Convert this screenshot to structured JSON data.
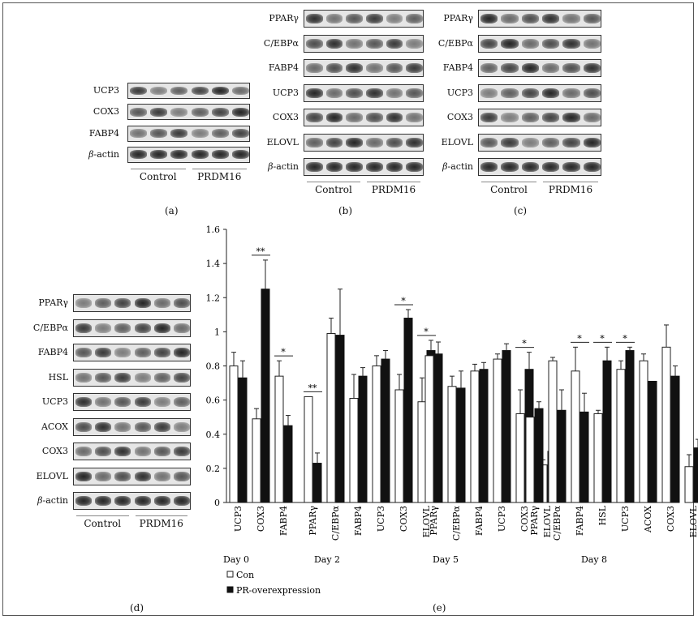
{
  "panels": {
    "a": {
      "letter": "(a)",
      "rows": [
        "UCP3",
        "COX3",
        "FABP4"
      ],
      "actin": "actin",
      "groups": [
        "Control",
        "PRDM16"
      ]
    },
    "b": {
      "letter": "(b)",
      "rows": [
        "PPARγ",
        "C/EBPα",
        "FABP4",
        "UCP3",
        "COX3",
        "ELOVL"
      ],
      "actin": "actin",
      "groups": [
        "Control",
        "PRDM16"
      ]
    },
    "c": {
      "letter": "(c)",
      "rows": [
        "PPARγ",
        "C/EBPα",
        "FABP4",
        "UCP3",
        "COX3",
        "ELOVL"
      ],
      "actin": "actin",
      "groups": [
        "Control",
        "PRDM16"
      ]
    },
    "d": {
      "letter": "(d)",
      "rows": [
        "PPARγ",
        "C/EBPα",
        "FABP4",
        "HSL",
        "UCP3",
        "ACOX",
        "COX3",
        "ELOVL"
      ],
      "actin": "actin",
      "groups": [
        "Control",
        "PRDM16"
      ]
    },
    "e": {
      "letter": "(e)"
    }
  },
  "beta_symbol": "β-",
  "chart_data": {
    "type": "bar",
    "ylim": [
      0,
      1.6
    ],
    "yticks": [
      "0",
      "0.2",
      "0.4",
      "0.6",
      "0.8",
      "1",
      "1.2",
      "1.4",
      "1.6"
    ],
    "legend": {
      "placement": "bottom-left",
      "con": "Con",
      "pr": "PR-overexpression"
    },
    "colors": {
      "con": "#ffffff",
      "pr": "#111111"
    },
    "days": [
      {
        "label": "Day 0",
        "genes": [
          "UCP3",
          "COX3",
          "FABP4"
        ],
        "con": [
          0.8,
          0.49,
          0.74
        ],
        "con_err": [
          0.08,
          0.06,
          0.09
        ],
        "pr": [
          0.73,
          1.25,
          0.45
        ],
        "pr_err": [
          0.1,
          0.17,
          0.06
        ],
        "sig": [
          "",
          "**",
          "*"
        ]
      },
      {
        "label": "Day 2",
        "genes": [
          "PPARγ",
          "C/EBPα",
          "FABP4",
          "UCP3",
          "COX3",
          "ELOVL"
        ],
        "con": [
          0.62,
          0.99,
          0.61,
          0.8,
          0.66,
          0.59
        ],
        "con_err": [
          0.0,
          0.09,
          0.14,
          0.06,
          0.09,
          0.14
        ],
        "pr": [
          0.23,
          0.98,
          0.74,
          0.84,
          1.08,
          0.89
        ],
        "pr_err": [
          0.06,
          0.27,
          0.05,
          0.05,
          0.05,
          0.06
        ],
        "sig": [
          "**",
          "",
          "",
          "",
          "*",
          "*"
        ]
      },
      {
        "label": "Day 5",
        "genes": [
          "PPARγ",
          "C/EBPα",
          "FABP4",
          "UCP3",
          "COX3",
          "ELOVL"
        ],
        "con": [
          0.86,
          0.68,
          0.77,
          0.84,
          0.52,
          0.22
        ],
        "con_err": [
          0.0,
          0.06,
          0.04,
          0.03,
          0.14,
          0.03
        ],
        "pr": [
          0.87,
          0.67,
          0.78,
          0.89,
          0.78,
          0.3
        ],
        "pr_err": [
          0.07,
          0.1,
          0.04,
          0.04,
          0.1,
          0.11
        ],
        "sig": [
          "",
          "",
          "",
          "",
          "*",
          ""
        ]
      },
      {
        "label": "Day 8",
        "genes": [
          "PPARγ",
          "C/EBPα",
          "FABP4",
          "HSL",
          "UCP3",
          "ACOX",
          "COX3",
          "ELOVL"
        ],
        "con": [
          0.5,
          0.83,
          0.77,
          0.52,
          0.78,
          0.83,
          0.91,
          0.21
        ],
        "con_err": [
          0.0,
          0.02,
          0.14,
          0.02,
          0.05,
          0.04,
          0.13,
          0.07
        ],
        "pr": [
          0.55,
          0.54,
          0.53,
          0.83,
          0.89,
          0.71,
          0.74,
          0.32
        ],
        "pr_err": [
          0.04,
          0.12,
          0.11,
          0.08,
          0.02,
          0.0,
          0.06,
          0.05
        ],
        "sig": [
          "",
          "",
          "*",
          "*",
          "*",
          "",
          "",
          ""
        ]
      }
    ]
  }
}
